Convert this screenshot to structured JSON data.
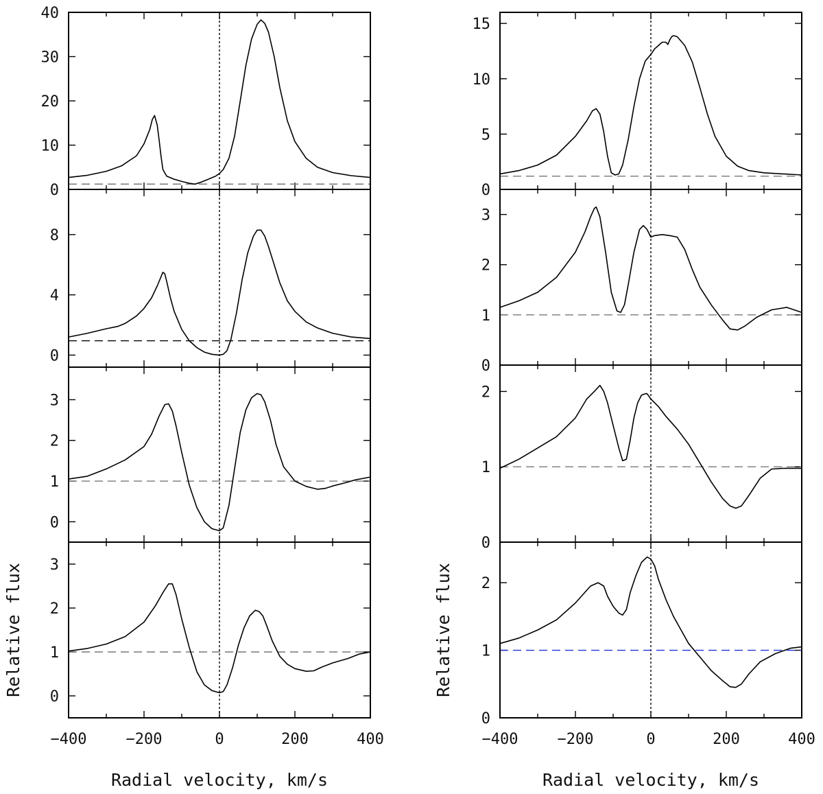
{
  "chart_data": [
    {
      "type": "line",
      "column": "left",
      "xlim": [
        -400,
        400
      ],
      "ylim": [
        0,
        40
      ],
      "y_ticks": [
        "0",
        "10",
        "20",
        "30",
        "40"
      ],
      "y_tick_values": [
        0,
        10,
        20,
        30,
        40
      ],
      "continuum": 1.2,
      "continuum_color": "#777777",
      "series": [
        {
          "name": "profile",
          "x": [
            -400,
            -350,
            -300,
            -260,
            -220,
            -200,
            -185,
            -178,
            -172,
            -165,
            -160,
            -155,
            -150,
            -140,
            -120,
            -100,
            -80,
            -65,
            -50,
            -30,
            -10,
            0,
            10,
            25,
            40,
            55,
            70,
            85,
            100,
            110,
            120,
            130,
            145,
            160,
            180,
            200,
            230,
            260,
            300,
            350,
            400
          ],
          "y": [
            2.7,
            3.2,
            4.1,
            5.3,
            7.6,
            10.3,
            13.5,
            15.8,
            16.7,
            14.5,
            11.2,
            7.5,
            4.5,
            3.0,
            2.3,
            1.8,
            1.4,
            1.2,
            1.6,
            2.3,
            3.0,
            3.6,
            4.5,
            7.0,
            12.0,
            20.0,
            28.0,
            34.0,
            37.3,
            38.3,
            37.5,
            35.5,
            30.0,
            23.0,
            15.5,
            10.8,
            7.0,
            5.0,
            3.8,
            3.1,
            2.7
          ]
        }
      ]
    },
    {
      "type": "line",
      "column": "left",
      "xlim": [
        -400,
        400
      ],
      "ylim": [
        -0.8,
        11
      ],
      "y_ticks": [
        "0",
        "4",
        "8"
      ],
      "y_tick_values": [
        0,
        4,
        8
      ],
      "continuum": 0.95,
      "continuum_color": "#000000",
      "series": [
        {
          "name": "profile",
          "x": [
            -400,
            -350,
            -300,
            -270,
            -250,
            -220,
            -200,
            -180,
            -165,
            -155,
            -150,
            -145,
            -140,
            -130,
            -120,
            -100,
            -80,
            -60,
            -40,
            -20,
            0,
            10,
            20,
            30,
            45,
            60,
            75,
            90,
            100,
            110,
            120,
            130,
            145,
            160,
            180,
            200,
            230,
            260,
            300,
            350,
            400
          ],
          "y": [
            1.2,
            1.45,
            1.75,
            1.9,
            2.1,
            2.6,
            3.1,
            3.8,
            4.6,
            5.2,
            5.5,
            5.4,
            4.9,
            3.8,
            2.9,
            1.7,
            0.95,
            0.5,
            0.2,
            0.05,
            0.0,
            0.05,
            0.3,
            1.0,
            2.8,
            5.0,
            6.8,
            7.9,
            8.3,
            8.3,
            7.9,
            7.2,
            6.0,
            4.8,
            3.6,
            2.9,
            2.2,
            1.8,
            1.45,
            1.2,
            1.1
          ]
        }
      ]
    },
    {
      "type": "line",
      "column": "left",
      "xlim": [
        -400,
        400
      ],
      "ylim": [
        -0.5,
        3.8
      ],
      "y_ticks": [
        "0",
        "1",
        "2",
        "3"
      ],
      "y_tick_values": [
        0,
        1,
        2,
        3
      ],
      "continuum": 1.0,
      "continuum_color": "#777777",
      "series": [
        {
          "name": "profile",
          "x": [
            -400,
            -350,
            -300,
            -250,
            -200,
            -180,
            -160,
            -145,
            -135,
            -125,
            -115,
            -100,
            -80,
            -60,
            -40,
            -20,
            0,
            10,
            25,
            40,
            55,
            70,
            85,
            100,
            110,
            120,
            135,
            150,
            170,
            200,
            230,
            260,
            280,
            300,
            330,
            360,
            400
          ],
          "y": [
            1.05,
            1.12,
            1.3,
            1.52,
            1.85,
            2.15,
            2.6,
            2.88,
            2.9,
            2.72,
            2.35,
            1.7,
            0.9,
            0.35,
            0.0,
            -0.17,
            -0.22,
            -0.15,
            0.4,
            1.3,
            2.2,
            2.75,
            3.05,
            3.15,
            3.12,
            2.95,
            2.5,
            1.9,
            1.35,
            1.0,
            0.87,
            0.8,
            0.82,
            0.88,
            0.95,
            1.03,
            1.1
          ]
        }
      ]
    },
    {
      "type": "line",
      "column": "left",
      "xlim": [
        -400,
        400
      ],
      "ylim": [
        -0.5,
        3.5
      ],
      "y_ticks": [
        "0",
        "1",
        "2",
        "3"
      ],
      "y_tick_values": [
        0,
        1,
        2,
        3
      ],
      "continuum": 1.0,
      "continuum_color": "#777777",
      "series": [
        {
          "name": "profile",
          "x": [
            -400,
            -350,
            -300,
            -250,
            -200,
            -170,
            -150,
            -135,
            -125,
            -115,
            -100,
            -80,
            -60,
            -40,
            -20,
            0,
            10,
            20,
            35,
            50,
            65,
            80,
            95,
            105,
            115,
            125,
            140,
            160,
            180,
            200,
            230,
            250,
            270,
            300,
            340,
            370,
            400
          ],
          "y": [
            1.02,
            1.08,
            1.18,
            1.35,
            1.68,
            2.05,
            2.35,
            2.55,
            2.55,
            2.3,
            1.75,
            1.1,
            0.55,
            0.25,
            0.12,
            0.07,
            0.1,
            0.25,
            0.65,
            1.15,
            1.55,
            1.82,
            1.95,
            1.92,
            1.82,
            1.6,
            1.25,
            0.9,
            0.72,
            0.62,
            0.56,
            0.57,
            0.65,
            0.75,
            0.85,
            0.95,
            1.0
          ]
        }
      ]
    },
    {
      "type": "line",
      "column": "right",
      "xlim": [
        -400,
        400
      ],
      "ylim": [
        0,
        16
      ],
      "y_ticks": [
        "0",
        "5",
        "10",
        "15"
      ],
      "y_tick_values": [
        0,
        5,
        10,
        15
      ],
      "continuum": 1.2,
      "continuum_color": "#777777",
      "series": [
        {
          "name": "profile",
          "x": [
            -400,
            -350,
            -300,
            -250,
            -200,
            -170,
            -155,
            -145,
            -135,
            -125,
            -115,
            -105,
            -95,
            -85,
            -75,
            -60,
            -45,
            -30,
            -15,
            0,
            10,
            20,
            30,
            40,
            45,
            50,
            55,
            60,
            70,
            90,
            110,
            130,
            150,
            170,
            200,
            230,
            260,
            300,
            350,
            400
          ],
          "y": [
            1.4,
            1.7,
            2.2,
            3.1,
            4.8,
            6.2,
            7.1,
            7.3,
            6.8,
            5.2,
            3.0,
            1.5,
            1.3,
            1.4,
            2.2,
            4.5,
            7.5,
            10.0,
            11.6,
            12.2,
            12.7,
            13.0,
            13.3,
            13.3,
            13.1,
            13.5,
            13.8,
            13.9,
            13.8,
            13.0,
            11.5,
            9.2,
            6.8,
            4.8,
            3.0,
            2.1,
            1.7,
            1.5,
            1.4,
            1.3
          ]
        }
      ]
    },
    {
      "type": "line",
      "column": "right",
      "xlim": [
        -400,
        400
      ],
      "ylim": [
        0,
        3.5
      ],
      "y_ticks": [
        "0",
        "1",
        "2",
        "3"
      ],
      "y_tick_values": [
        0,
        1,
        2,
        3
      ],
      "continuum": 1.0,
      "continuum_color": "#777777",
      "series": [
        {
          "name": "profile",
          "x": [
            -400,
            -350,
            -300,
            -250,
            -200,
            -175,
            -160,
            -150,
            -145,
            -135,
            -120,
            -105,
            -90,
            -80,
            -70,
            -60,
            -45,
            -30,
            -20,
            -10,
            0,
            10,
            30,
            50,
            70,
            90,
            110,
            130,
            160,
            190,
            210,
            230,
            250,
            280,
            320,
            360,
            400
          ],
          "y": [
            1.15,
            1.28,
            1.45,
            1.75,
            2.25,
            2.65,
            2.95,
            3.12,
            3.15,
            2.95,
            2.25,
            1.45,
            1.08,
            1.05,
            1.2,
            1.6,
            2.25,
            2.7,
            2.78,
            2.7,
            2.55,
            2.58,
            2.6,
            2.58,
            2.55,
            2.3,
            1.9,
            1.55,
            1.2,
            0.9,
            0.72,
            0.7,
            0.78,
            0.95,
            1.1,
            1.15,
            1.05
          ]
        }
      ]
    },
    {
      "type": "line",
      "column": "right",
      "xlim": [
        -400,
        400
      ],
      "ylim": [
        0,
        2.35
      ],
      "y_ticks": [
        "0",
        "1",
        "2"
      ],
      "y_tick_values": [
        0,
        1,
        2
      ],
      "continuum": 1.0,
      "continuum_color": "#777777",
      "series": [
        {
          "name": "profile",
          "x": [
            -400,
            -350,
            -300,
            -250,
            -200,
            -170,
            -150,
            -135,
            -125,
            -115,
            -100,
            -85,
            -75,
            -65,
            -55,
            -45,
            -35,
            -25,
            -15,
            -10,
            0,
            20,
            40,
            70,
            100,
            130,
            160,
            190,
            210,
            225,
            240,
            260,
            290,
            320,
            350,
            380,
            400
          ],
          "y": [
            0.98,
            1.1,
            1.25,
            1.4,
            1.65,
            1.9,
            2.0,
            2.08,
            2.0,
            1.85,
            1.55,
            1.25,
            1.08,
            1.1,
            1.35,
            1.65,
            1.85,
            1.95,
            1.97,
            1.97,
            1.9,
            1.8,
            1.67,
            1.5,
            1.3,
            1.05,
            0.8,
            0.58,
            0.48,
            0.45,
            0.48,
            0.62,
            0.85,
            0.97,
            0.98,
            0.98,
            0.98
          ]
        }
      ]
    },
    {
      "type": "line",
      "column": "right",
      "xlim": [
        -400,
        400
      ],
      "ylim": [
        0,
        2.6
      ],
      "y_ticks": [
        "0",
        "1",
        "2"
      ],
      "y_tick_values": [
        0,
        1,
        2
      ],
      "continuum": 1.0,
      "continuum_color": "#1f32d8",
      "series": [
        {
          "name": "profile",
          "x": [
            -400,
            -350,
            -300,
            -250,
            -200,
            -160,
            -140,
            -125,
            -115,
            -100,
            -85,
            -75,
            -65,
            -55,
            -40,
            -25,
            -10,
            0,
            10,
            20,
            40,
            60,
            80,
            100,
            130,
            160,
            190,
            210,
            225,
            240,
            260,
            290,
            330,
            370,
            400
          ],
          "y": [
            1.1,
            1.18,
            1.3,
            1.45,
            1.7,
            1.95,
            2.0,
            1.95,
            1.8,
            1.65,
            1.55,
            1.52,
            1.6,
            1.85,
            2.1,
            2.3,
            2.38,
            2.35,
            2.25,
            2.05,
            1.75,
            1.5,
            1.3,
            1.1,
            0.9,
            0.7,
            0.55,
            0.46,
            0.45,
            0.5,
            0.65,
            0.83,
            0.95,
            1.03,
            1.05
          ]
        }
      ]
    }
  ],
  "x_ticks": [
    "−400",
    "−200",
    "0",
    "200",
    "400"
  ],
  "x_tick_values": [
    -400,
    -200,
    0,
    200,
    400
  ],
  "xlabel": "Radial velocity, km/s",
  "ylabel": "Relative flux"
}
